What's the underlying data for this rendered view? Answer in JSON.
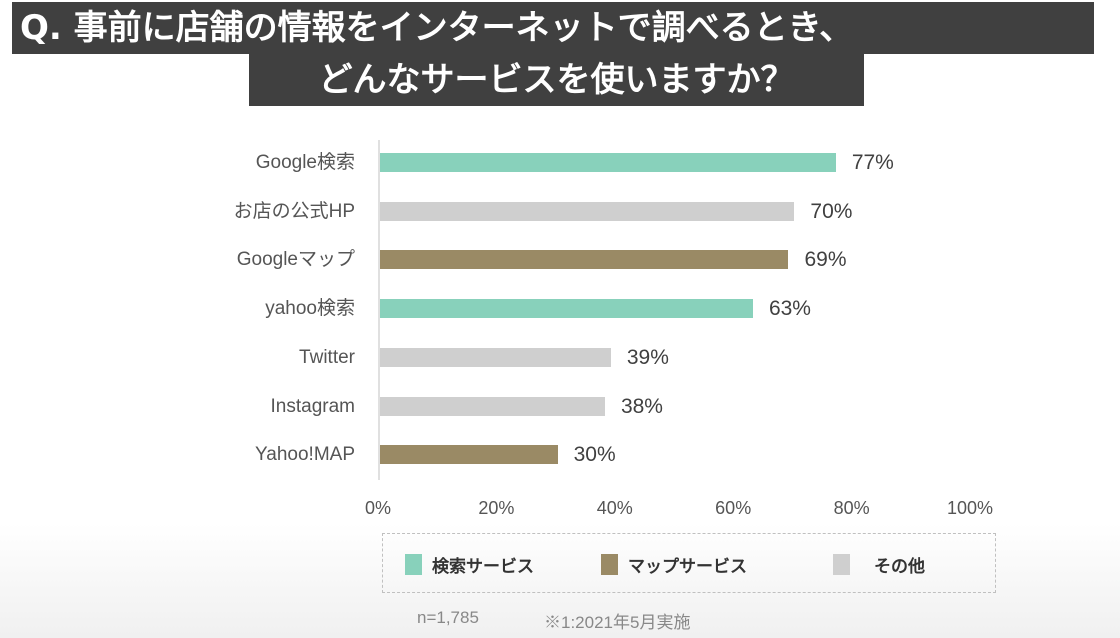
{
  "title": {
    "line1": "Q. 事前に店舗の情報をインターネットで調べるとき、",
    "line2": "どんなサービスを使いますか？"
  },
  "colors": {
    "search": "#88d1bb",
    "map": "#9a8a65",
    "other": "#cfcfcf",
    "title_bg": "#404040"
  },
  "chart_data": {
    "type": "bar",
    "orientation": "horizontal",
    "title": "Q. 事前に店舗の情報をインターネットで調べるとき、どんなサービスを使いますか？",
    "categories": [
      "Google検索",
      "お店の公式HP",
      "Googleマップ",
      "yahoo検索",
      "Twitter",
      "Instagram",
      "Yahoo!MAP"
    ],
    "values": [
      77,
      70,
      69,
      63,
      39,
      38,
      30
    ],
    "value_labels": [
      "77%",
      "70%",
      "69%",
      "63%",
      "39%",
      "38%",
      "30%"
    ],
    "groups": [
      "search",
      "other",
      "map",
      "search",
      "other",
      "other",
      "map"
    ],
    "xlabel": "",
    "ylabel": "",
    "xlim": [
      0,
      100
    ],
    "x_ticks": [
      "0%",
      "20%",
      "40%",
      "60%",
      "80%",
      "100%"
    ],
    "grid": false,
    "legend": {
      "position": "bottom",
      "entries": [
        {
          "key": "search",
          "label": "検索サービス"
        },
        {
          "key": "map",
          "label": "マップサービス"
        },
        {
          "key": "other",
          "label": "その他"
        }
      ]
    },
    "annotations": [
      "n=1,785",
      "※1:2021年5月実施"
    ]
  },
  "footnotes": {
    "sample": "n=1,785",
    "note": "※1:2021年5月実施"
  }
}
